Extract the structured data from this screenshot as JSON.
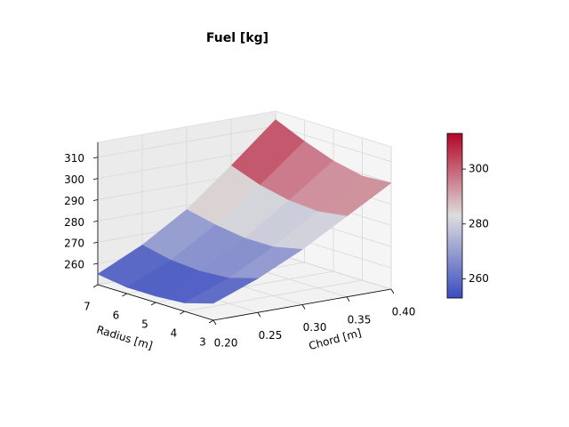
{
  "chart_data": {
    "type": "surface",
    "title": "Fuel [kg]",
    "xlabel": "Chord [m]",
    "ylabel": "Radius [m]",
    "x": [
      0.2,
      0.25,
      0.3,
      0.35,
      0.4
    ],
    "y": [
      3,
      4,
      5,
      6,
      7
    ],
    "z": [
      [
        258,
        266,
        276,
        288,
        300
      ],
      [
        254,
        262,
        273,
        286,
        299
      ],
      [
        253,
        261,
        273,
        287,
        302
      ],
      [
        253,
        262,
        275,
        290,
        307
      ],
      [
        255,
        265,
        278,
        295,
        313
      ]
    ],
    "xlim": [
      0.2,
      0.4
    ],
    "ylim": [
      3,
      7
    ],
    "zlim": [
      250,
      317
    ],
    "xticks": [
      {
        "value": 0.2,
        "label": "0.20"
      },
      {
        "value": 0.25,
        "label": "0.25"
      },
      {
        "value": 0.3,
        "label": "0.30"
      },
      {
        "value": 0.35,
        "label": "0.35"
      },
      {
        "value": 0.4,
        "label": "0.40"
      }
    ],
    "yticks": [
      3,
      4,
      5,
      6,
      7
    ],
    "zticks": [
      260,
      270,
      280,
      290,
      300,
      310
    ],
    "colorbar_ticks": [
      260,
      280,
      300
    ],
    "colormap": [
      "#3b4cc0",
      "#dddddd",
      "#b40426"
    ],
    "grid": true
  }
}
